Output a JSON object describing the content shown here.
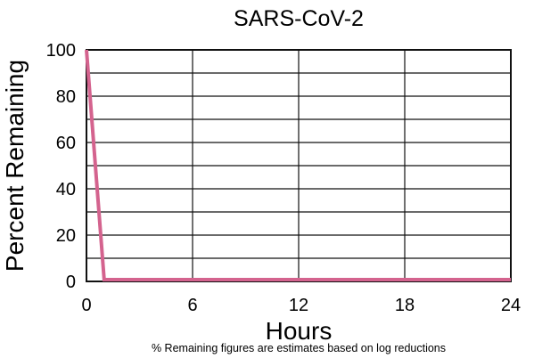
{
  "chart_data": {
    "type": "line",
    "title": "SARS-CoV-2",
    "xlabel": "Hours",
    "ylabel": "Percent Remaining",
    "footnote": "% Remaining figures are estimates based on log reductions",
    "xlim": [
      0,
      24
    ],
    "ylim": [
      0,
      100
    ],
    "xticks": [
      "0",
      "6",
      "12",
      "18",
      "24"
    ],
    "yticks": [
      "0",
      "20",
      "40",
      "60",
      "80",
      "100"
    ],
    "grid": true,
    "legend": "none",
    "line_color": "#d4638e",
    "series": [
      {
        "x": [
          0,
          1,
          24
        ],
        "y": [
          100,
          0,
          0
        ]
      }
    ]
  }
}
